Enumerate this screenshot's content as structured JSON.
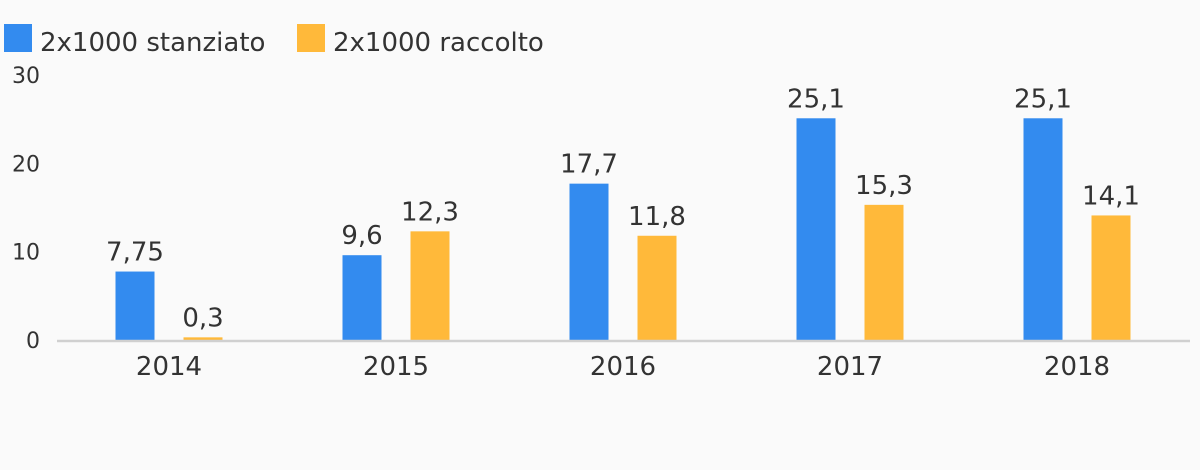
{
  "chart_data": {
    "type": "bar",
    "categories": [
      "2014",
      "2015",
      "2016",
      "2017",
      "2018"
    ],
    "series": [
      {
        "name": "2x1000 stanziato",
        "color": "#338bef",
        "values": [
          7.75,
          9.6,
          17.7,
          25.1,
          25.1
        ],
        "labels": [
          "7,75",
          "9,6",
          "17,7",
          "25,1",
          "25,1"
        ]
      },
      {
        "name": "2x1000 raccolto",
        "color": "#ffb93a",
        "values": [
          0.3,
          12.3,
          11.8,
          15.3,
          14.1
        ],
        "labels": [
          "0,3",
          "12,3",
          "11,8",
          "15,3",
          "14,1"
        ]
      }
    ],
    "ylim": [
      0,
      30
    ],
    "yticks": [
      0,
      10,
      20,
      30
    ],
    "ytick_labels": [
      "0",
      "10",
      "20",
      "30"
    ],
    "grid": false,
    "legend": "top-left",
    "axis_color": "#d0d0d0"
  }
}
